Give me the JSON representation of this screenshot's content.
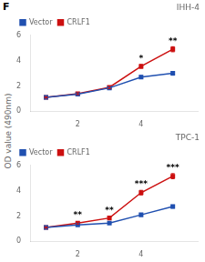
{
  "title": "F",
  "ylabel": "OD value (490nm)",
  "chart_data": [
    {
      "type": "line",
      "title": "IHH-4",
      "x": [
        1,
        2,
        3,
        4,
        5
      ],
      "series": [
        {
          "name": "Vector",
          "color": "#2050b0",
          "marker": "square",
          "values": [
            1.1,
            1.35,
            1.85,
            2.7,
            3.0
          ],
          "errors": [
            0.05,
            0.05,
            0.08,
            0.12,
            0.15
          ]
        },
        {
          "name": "CRLF1",
          "color": "#cc1010",
          "marker": "square",
          "values": [
            1.1,
            1.4,
            1.9,
            3.55,
            4.9
          ],
          "errors": [
            0.05,
            0.08,
            0.1,
            0.15,
            0.2
          ]
        }
      ],
      "annotations": [
        {
          "x": 4,
          "y": 3.85,
          "text": "*"
        },
        {
          "x": 5,
          "y": 5.15,
          "text": "**"
        }
      ],
      "xlim": [
        0.5,
        5.8
      ],
      "xticks": [
        2,
        4
      ],
      "ylim": [
        0,
        6
      ],
      "yticks": [
        0,
        2,
        4,
        6
      ],
      "grid": false,
      "legend": "upper left"
    },
    {
      "type": "line",
      "title": "TPC-1",
      "x": [
        1,
        2,
        3,
        4,
        5
      ],
      "series": [
        {
          "name": "Vector",
          "color": "#2050b0",
          "marker": "square",
          "values": [
            1.1,
            1.3,
            1.45,
            2.1,
            2.75
          ],
          "errors": [
            0.05,
            0.06,
            0.07,
            0.1,
            0.12
          ]
        },
        {
          "name": "CRLF1",
          "color": "#cc1010",
          "marker": "square",
          "values": [
            1.1,
            1.45,
            1.85,
            3.85,
            5.15
          ],
          "errors": [
            0.05,
            0.08,
            0.1,
            0.18,
            0.2
          ]
        }
      ],
      "annotations": [
        {
          "x": 2,
          "y": 1.72,
          "text": "**"
        },
        {
          "x": 3,
          "y": 2.1,
          "text": "**"
        },
        {
          "x": 4,
          "y": 4.2,
          "text": "***"
        },
        {
          "x": 5,
          "y": 5.5,
          "text": "***"
        }
      ],
      "xlim": [
        0.5,
        5.8
      ],
      "xticks": [
        2,
        4
      ],
      "ylim": [
        0,
        6
      ],
      "yticks": [
        0,
        2,
        4,
        6
      ],
      "grid": false,
      "legend": "upper left"
    }
  ]
}
